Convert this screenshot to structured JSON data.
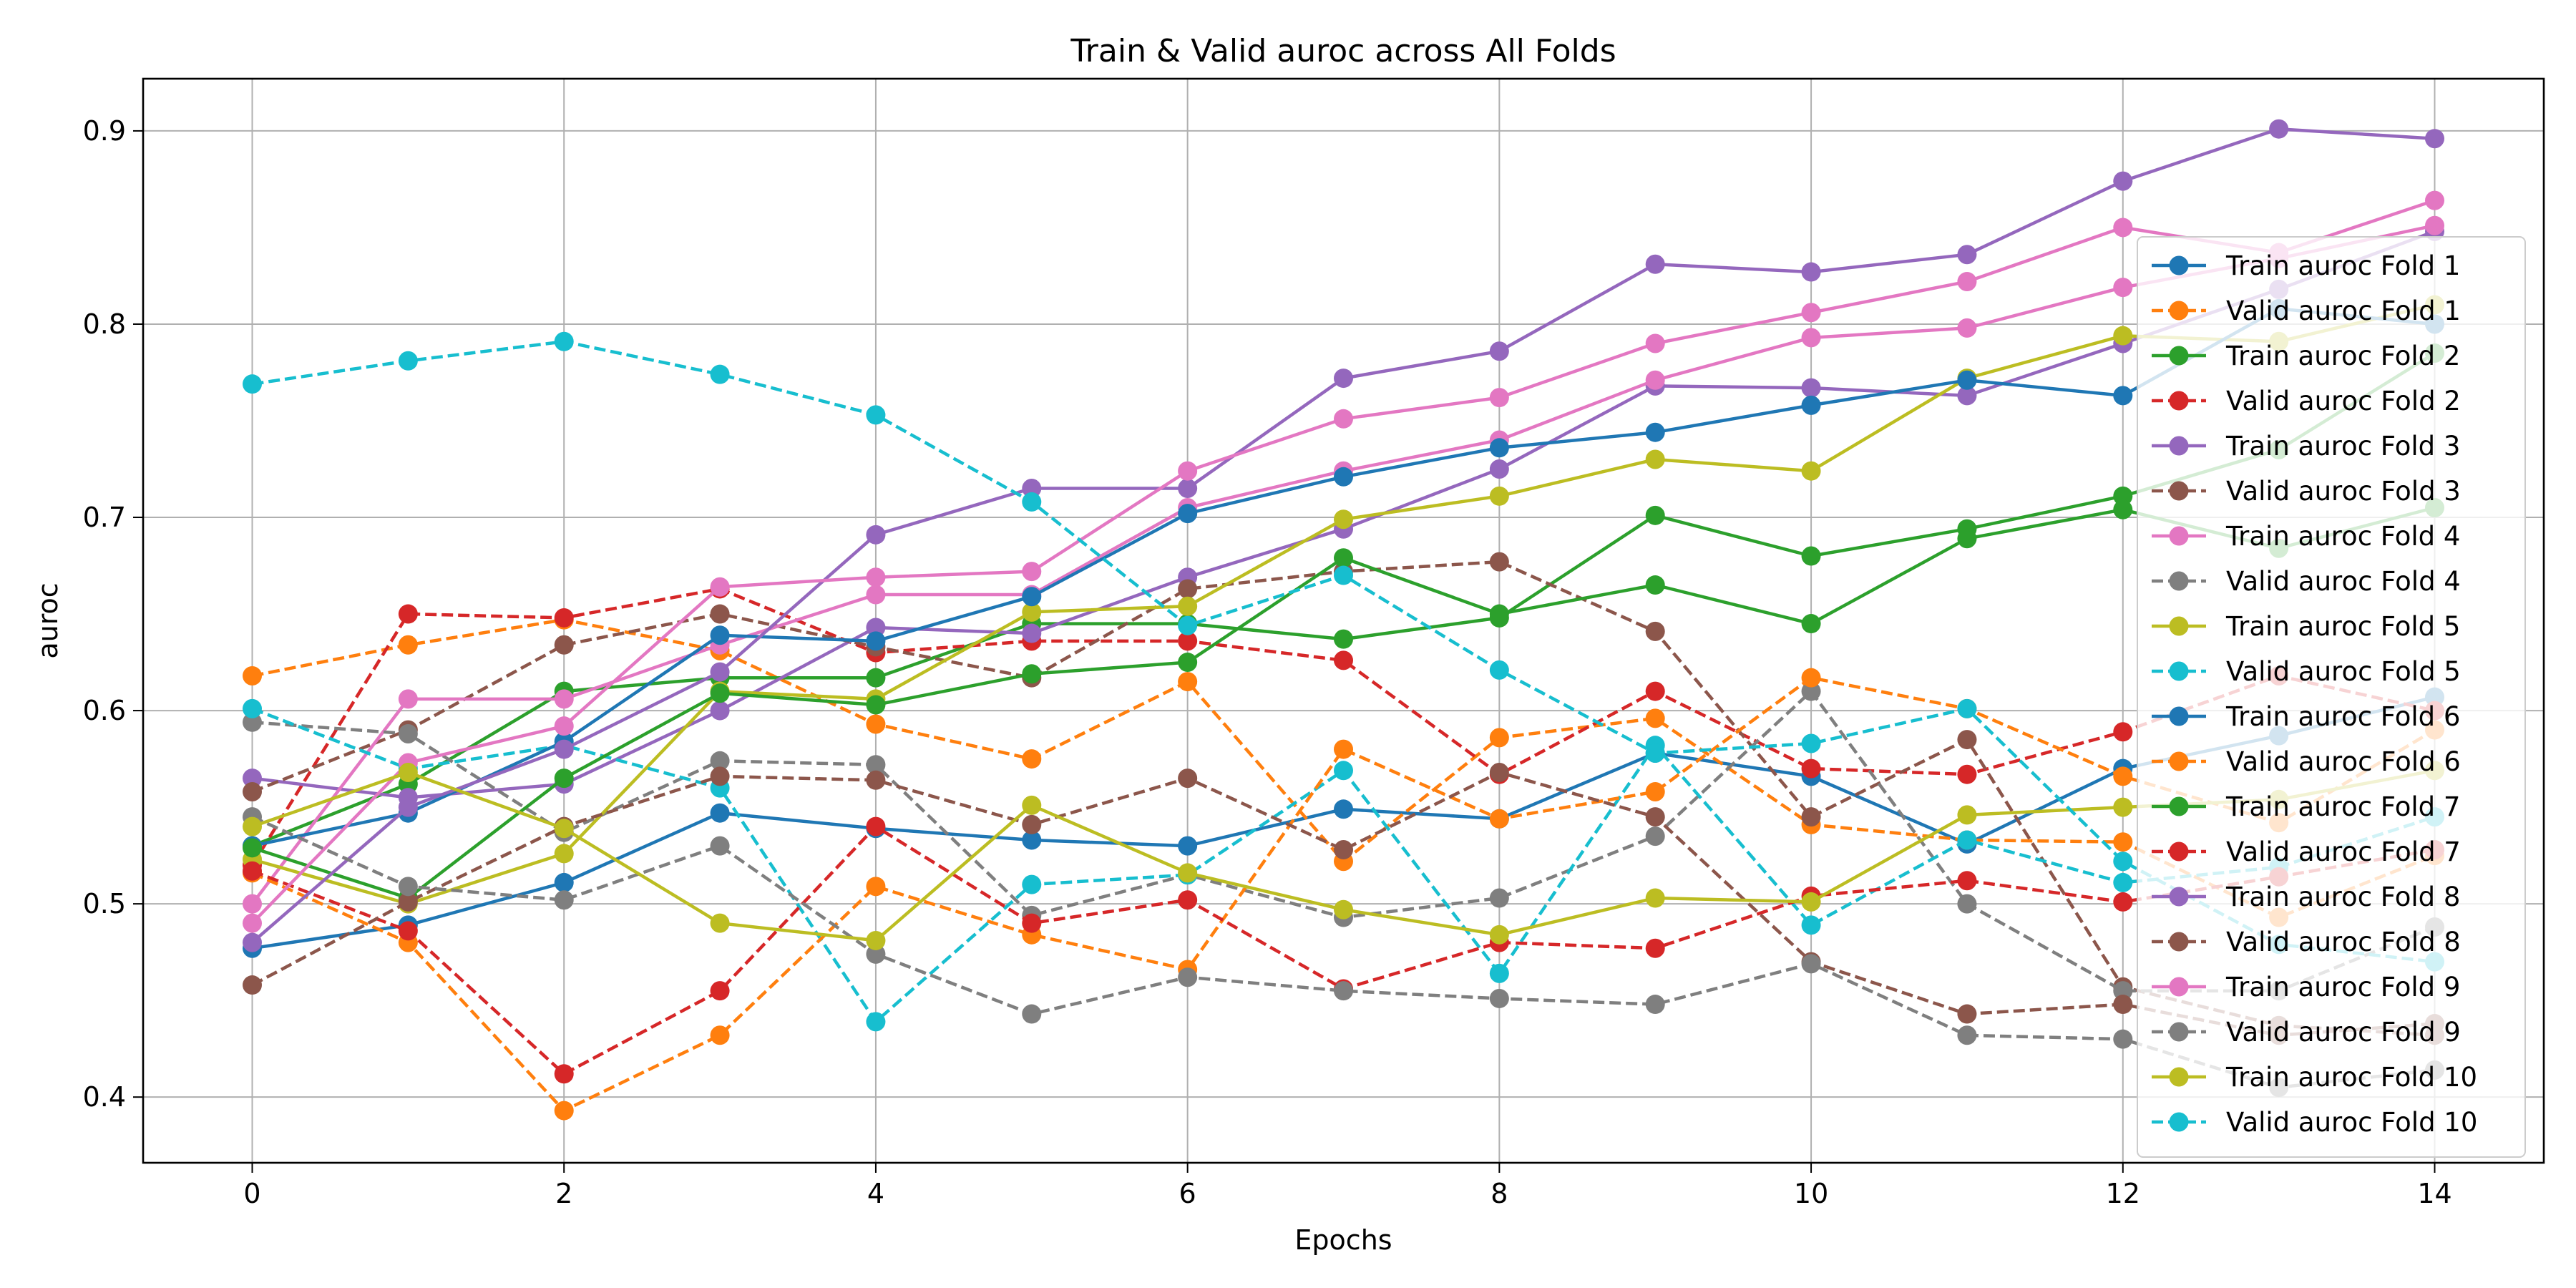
{
  "chart_data": {
    "type": "line",
    "title": "Train & Valid auroc across All Folds",
    "xlabel": "Epochs",
    "ylabel": "auroc",
    "xlim": [
      -0.7,
      14.7
    ],
    "ylim": [
      0.366,
      0.927
    ],
    "xticks": [
      0,
      2,
      4,
      6,
      8,
      10,
      12,
      14
    ],
    "yticks": [
      0.4,
      0.5,
      0.6,
      0.7,
      0.8,
      0.9
    ],
    "grid": true,
    "legend_position": "right",
    "x": [
      0,
      1,
      2,
      3,
      4,
      5,
      6,
      7,
      8,
      9,
      10,
      11,
      12,
      13,
      14
    ],
    "series": [
      {
        "name": "Train auroc Fold 1",
        "color": "#1f77b4",
        "dash": "solid",
        "values": [
          0.477,
          0.489,
          0.511,
          0.547,
          0.539,
          0.533,
          0.53,
          0.549,
          0.544,
          0.578,
          0.566,
          0.531,
          0.57,
          0.587,
          0.607
        ]
      },
      {
        "name": "Valid auroc Fold 1",
        "color": "#ff7f0e",
        "dash": "dashed",
        "values": [
          0.618,
          0.634,
          0.647,
          0.631,
          0.593,
          0.575,
          0.615,
          0.522,
          0.586,
          0.596,
          0.541,
          0.533,
          0.532,
          0.493,
          0.525
        ]
      },
      {
        "name": "Train auroc Fold 2",
        "color": "#2ca02c",
        "dash": "solid",
        "values": [
          0.53,
          0.562,
          0.61,
          0.617,
          0.617,
          0.645,
          0.645,
          0.637,
          0.648,
          0.701,
          0.68,
          0.694,
          0.711,
          0.735,
          0.785
        ]
      },
      {
        "name": "Valid auroc Fold 2",
        "color": "#d62728",
        "dash": "dashed",
        "values": [
          0.52,
          0.65,
          0.648,
          0.663,
          0.63,
          0.636,
          0.636,
          0.626,
          0.567,
          0.61,
          0.57,
          0.567,
          0.589,
          0.618,
          0.6
        ]
      },
      {
        "name": "Train auroc Fold 3",
        "color": "#9467bd",
        "dash": "solid",
        "values": [
          0.565,
          0.555,
          0.562,
          0.6,
          0.643,
          0.64,
          0.669,
          0.694,
          0.725,
          0.768,
          0.767,
          0.763,
          0.79,
          0.818,
          0.848
        ]
      },
      {
        "name": "Valid auroc Fold 3",
        "color": "#8c564b",
        "dash": "dashed",
        "values": [
          0.558,
          0.59,
          0.634,
          0.65,
          0.633,
          0.617,
          0.663,
          0.672,
          0.677,
          0.641,
          0.545,
          0.585,
          0.457,
          0.437,
          0.432
        ]
      },
      {
        "name": "Train auroc Fold 4",
        "color": "#e377c2",
        "dash": "solid",
        "values": [
          0.5,
          0.606,
          0.606,
          0.634,
          0.66,
          0.66,
          0.705,
          0.724,
          0.74,
          0.771,
          0.793,
          0.798,
          0.819,
          0.834,
          0.851
        ]
      },
      {
        "name": "Valid auroc Fold 4",
        "color": "#7f7f7f",
        "dash": "dashed",
        "values": [
          0.594,
          0.588,
          0.537,
          0.574,
          0.572,
          0.494,
          0.515,
          0.493,
          0.503,
          0.535,
          0.61,
          0.5,
          0.455,
          0.455,
          0.488
        ]
      },
      {
        "name": "Train auroc Fold 5",
        "color": "#bcbd22",
        "dash": "solid",
        "values": [
          0.523,
          0.5,
          0.526,
          0.61,
          0.606,
          0.651,
          0.654,
          0.699,
          0.711,
          0.73,
          0.724,
          0.772,
          0.794,
          0.791,
          0.81
        ]
      },
      {
        "name": "Valid auroc Fold 5",
        "color": "#17becf",
        "dash": "dashed",
        "values": [
          0.601,
          0.57,
          0.582,
          0.56,
          0.439,
          0.51,
          0.515,
          0.569,
          0.464,
          0.582,
          0.489,
          0.533,
          0.511,
          0.519,
          0.545
        ]
      },
      {
        "name": "Train auroc Fold 6",
        "color": "#1f77b4",
        "dash": "solid",
        "values": [
          0.53,
          0.547,
          0.584,
          0.639,
          0.636,
          0.659,
          0.702,
          0.721,
          0.736,
          0.744,
          0.758,
          0.771,
          0.763,
          0.808,
          0.8
        ]
      },
      {
        "name": "Valid auroc Fold 6",
        "color": "#ff7f0e",
        "dash": "dashed",
        "values": [
          0.516,
          0.48,
          0.393,
          0.432,
          0.509,
          0.484,
          0.466,
          0.58,
          0.544,
          0.558,
          0.617,
          0.601,
          0.566,
          0.542,
          0.59
        ]
      },
      {
        "name": "Train auroc Fold 7",
        "color": "#2ca02c",
        "dash": "solid",
        "values": [
          0.529,
          0.503,
          0.565,
          0.609,
          0.603,
          0.619,
          0.625,
          0.679,
          0.65,
          0.665,
          0.645,
          0.689,
          0.704,
          0.684,
          0.705
        ]
      },
      {
        "name": "Valid auroc Fold 7",
        "color": "#d62728",
        "dash": "dashed",
        "values": [
          0.517,
          0.486,
          0.412,
          0.455,
          0.54,
          0.49,
          0.502,
          0.456,
          0.48,
          0.477,
          0.504,
          0.512,
          0.501,
          0.514,
          0.528
        ]
      },
      {
        "name": "Train auroc Fold 8",
        "color": "#9467bd",
        "dash": "solid",
        "values": [
          0.48,
          0.55,
          0.58,
          0.62,
          0.691,
          0.715,
          0.715,
          0.772,
          0.786,
          0.831,
          0.827,
          0.836,
          0.874,
          0.901,
          0.896
        ]
      },
      {
        "name": "Valid auroc Fold 8",
        "color": "#8c564b",
        "dash": "dashed",
        "values": [
          0.458,
          0.501,
          0.54,
          0.566,
          0.564,
          0.541,
          0.565,
          0.528,
          0.568,
          0.545,
          0.47,
          0.443,
          0.448,
          0.432,
          0.438
        ]
      },
      {
        "name": "Train auroc Fold 9",
        "color": "#e377c2",
        "dash": "solid",
        "values": [
          0.49,
          0.573,
          0.592,
          0.664,
          0.669,
          0.672,
          0.724,
          0.751,
          0.762,
          0.79,
          0.806,
          0.822,
          0.85,
          0.837,
          0.864
        ]
      },
      {
        "name": "Valid auroc Fold 9",
        "color": "#7f7f7f",
        "dash": "dashed",
        "values": [
          0.545,
          0.509,
          0.502,
          0.53,
          0.474,
          0.443,
          0.462,
          0.455,
          0.451,
          0.448,
          0.469,
          0.432,
          0.43,
          0.405,
          0.414
        ]
      },
      {
        "name": "Train auroc Fold 10",
        "color": "#bcbd22",
        "dash": "solid",
        "values": [
          0.54,
          0.568,
          0.539,
          0.49,
          0.481,
          0.551,
          0.516,
          0.497,
          0.484,
          0.503,
          0.501,
          0.546,
          0.55,
          0.554,
          0.569
        ]
      },
      {
        "name": "Valid auroc Fold 10",
        "color": "#17becf",
        "dash": "dashed",
        "values": [
          0.769,
          0.781,
          0.791,
          0.774,
          0.753,
          0.708,
          0.644,
          0.67,
          0.621,
          0.578,
          0.583,
          0.601,
          0.522,
          0.479,
          0.47
        ]
      }
    ]
  }
}
